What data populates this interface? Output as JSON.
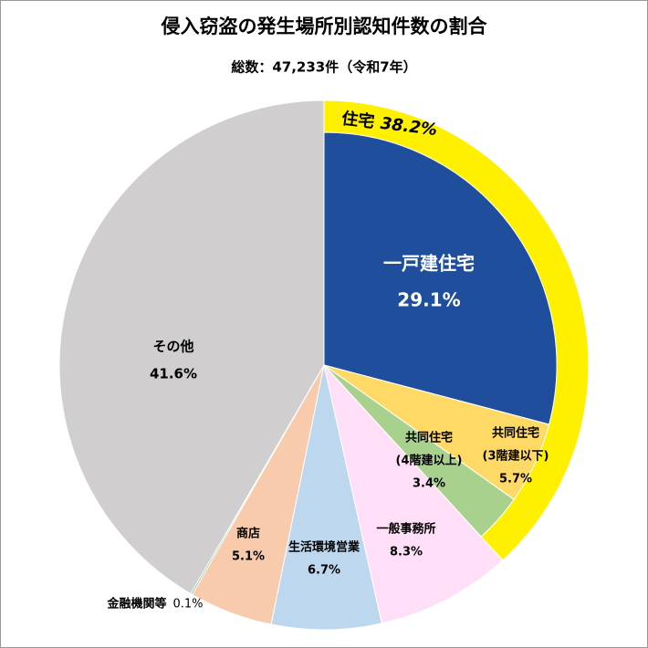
{
  "chart_data": {
    "type": "pie",
    "title": "侵入窃盗の発生場所別認知件数の割合",
    "subtitle": "総数：47,233件（令和7年）",
    "categories": [
      [
        "一戸建住宅"
      ],
      [
        "共同住宅",
        "(3階建以下)"
      ],
      [
        "共同住宅",
        "(4階建以上)"
      ],
      [
        "一般事務所"
      ],
      [
        "生活環境営業"
      ],
      [
        "商店"
      ],
      [
        "金融機関等"
      ],
      [
        "その他"
      ]
    ],
    "values": [
      29.1,
      5.7,
      3.4,
      8.3,
      6.7,
      5.1,
      0.1,
      41.6
    ],
    "value_labels": [
      "29.1%",
      "5.7%",
      "3.4%",
      "8.3%",
      "6.7%",
      "5.1%",
      "0.1%",
      "41.6%"
    ],
    "colors": [
      "#1f4e9c",
      "#ffd966",
      "#a9d18e",
      "#ffdff8",
      "#bdd7ee",
      "#f8cbad",
      "#5fbf9a",
      "#d0cece"
    ],
    "groups": [
      {
        "label": "住宅",
        "value": 38.2,
        "value_label": "38.2%",
        "color": "#fff000"
      }
    ]
  }
}
